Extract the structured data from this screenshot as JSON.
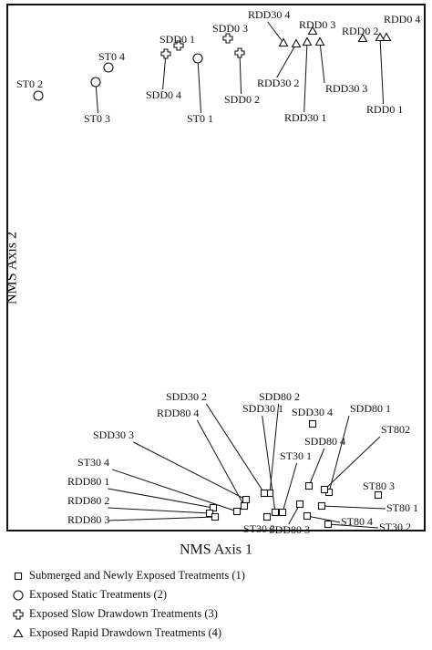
{
  "chart_data": {
    "type": "scatter",
    "x_label": "NMS Axis 1",
    "y_label": "NMS Axis 2",
    "xlim": [
      0,
      458
    ],
    "ylim": [
      0,
      577
    ],
    "series": [
      {
        "name": "Submerged and Newly Exposed Treatments (1)",
        "marker": "square",
        "color": "#111111",
        "labels": [
          "SDD30 4",
          "ST80 3",
          "SDD80 1",
          "ST802",
          "SDD80 4",
          "ST80 1",
          "ST80 4",
          "ST30 2",
          "SDD80 3",
          "ST30 1",
          "SDD30 1",
          "ST30 3",
          "SDD80 2",
          "SDD30 2",
          "SDD30 3",
          "RDD80 4",
          "ST30 4",
          "RDD80 1",
          "RDD80 2",
          "RDD80 3"
        ],
        "x": [
          335,
          407,
          353,
          348,
          331,
          345,
          329,
          352,
          321,
          302,
          294,
          285,
          288,
          282,
          262,
          260,
          252,
          226,
          222,
          228
        ],
        "values": [
          117,
          39,
          42,
          45,
          49,
          27,
          16,
          7,
          29,
          20,
          20,
          15,
          41,
          41,
          34,
          27,
          21,
          25,
          19,
          15
        ]
      },
      {
        "name": "Exposed Static Treatments (2)",
        "marker": "circle",
        "color": "#111111",
        "labels": [
          "ST0 2",
          "ST0 4",
          "ST0 3",
          "ST0 1"
        ],
        "x": [
          34,
          111,
          97,
          209
        ],
        "values": [
          477,
          508,
          492,
          518
        ]
      },
      {
        "name": "Exposed Slow Drawdown Treatments (3)",
        "marker": "cross",
        "color": "#111111",
        "labels": [
          "SDD0 1",
          "SDD0 3",
          "SDD0 4",
          "SDD0 2"
        ],
        "x": [
          188,
          242,
          174,
          255
        ],
        "values": [
          532,
          540,
          523,
          524
        ]
      },
      {
        "name": "Exposed Rapid Drawdown Treatments (4)",
        "marker": "triangle",
        "color": "#111111",
        "labels": [
          "RDD30 4",
          "RDD0 3",
          "RDD30 2",
          "RDD30 3",
          "RDD30 1",
          "RDD0 2",
          "RDD0 4",
          "RDD0 1"
        ],
        "x": [
          303,
          335,
          317,
          343,
          329,
          390,
          416,
          409
        ],
        "values": [
          535,
          548,
          534,
          536,
          536,
          540,
          541,
          541
        ]
      }
    ]
  }
}
